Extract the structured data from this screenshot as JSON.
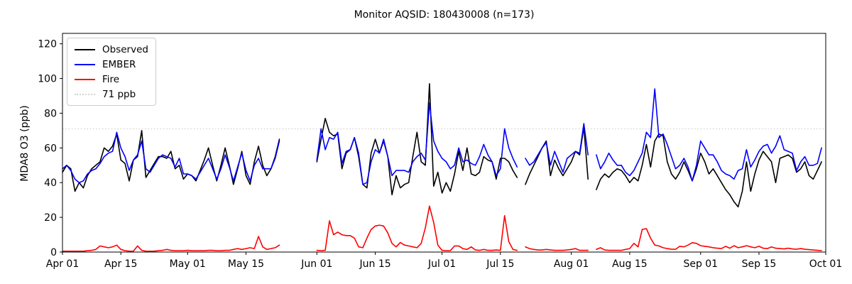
{
  "title": "Monitor AQSID: 180430008 (n=173)",
  "chart_data": {
    "type": "line",
    "title": "Monitor AQSID: 180430008 (n=173)",
    "xlabel": "",
    "ylabel": "MDA8 O3 (ppb)",
    "ylim": [
      0,
      126
    ],
    "yticks": [
      0,
      20,
      40,
      60,
      80,
      100,
      120
    ],
    "x_total_days": 183,
    "x_start_date": "Apr 01",
    "x_tick_days": [
      0,
      14,
      30,
      44,
      61,
      75,
      91,
      105,
      122,
      136,
      153,
      167,
      183
    ],
    "x_tick_labels": [
      "Apr 01",
      "Apr 15",
      "May 01",
      "May 15",
      "Jun 01",
      "Jun 15",
      "Jul 01",
      "Jul 15",
      "Aug 01",
      "Aug 15",
      "Sep 01",
      "Sep 15",
      "Oct 01"
    ],
    "grid": false,
    "legend_position": "upper left",
    "n_points": 173,
    "missing_day_indices": [
      53,
      54,
      55,
      56,
      57,
      58,
      59,
      60,
      110,
      127
    ],
    "threshold": {
      "label": "71 ppb",
      "value": 71,
      "color": "#d3d3d3",
      "style": "dotted"
    },
    "series": [
      {
        "name": "Observed",
        "color": "#000000",
        "values": [
          46,
          50,
          48,
          35,
          40,
          37,
          44,
          48,
          50,
          52,
          60,
          58,
          61,
          68,
          53,
          51,
          41,
          53,
          55,
          70,
          43,
          47,
          51,
          55,
          55,
          54,
          58,
          48,
          50,
          42,
          45,
          44,
          41,
          47,
          53,
          60,
          50,
          41,
          50,
          60,
          50,
          39,
          48,
          58,
          44,
          39,
          52,
          61,
          50,
          44,
          48,
          55,
          65,
          null,
          null,
          null,
          null,
          null,
          null,
          null,
          null,
          52,
          65,
          77,
          69,
          67,
          68,
          48,
          57,
          59,
          66,
          55,
          39,
          37,
          57,
          65,
          57,
          64,
          55,
          33,
          44,
          37,
          39,
          40,
          55,
          69,
          52,
          50,
          97,
          38,
          46,
          34,
          40,
          35,
          45,
          58,
          47,
          60,
          45,
          44,
          46,
          55,
          53,
          52,
          42,
          54,
          54,
          52,
          47,
          43,
          null,
          39,
          45,
          50,
          55,
          60,
          64,
          44,
          53,
          48,
          44,
          48,
          52,
          58,
          56,
          72,
          42,
          null,
          36,
          42,
          45,
          43,
          46,
          48,
          47,
          44,
          40,
          43,
          41,
          50,
          62,
          49,
          64,
          68,
          67,
          52,
          45,
          42,
          46,
          52,
          47,
          41,
          48,
          57,
          52,
          45,
          48,
          44,
          40,
          36,
          33,
          29,
          26,
          35,
          52,
          35,
          45,
          53,
          58,
          55,
          52,
          40,
          54,
          55,
          56,
          54,
          46,
          48,
          52,
          44,
          42,
          47,
          52
        ]
      },
      {
        "name": "EMBER",
        "color": "#0000ff",
        "values": [
          48,
          50,
          47,
          42,
          40,
          41,
          45,
          47,
          48,
          51,
          55,
          57,
          58,
          69,
          60,
          55,
          47,
          53,
          56,
          64,
          48,
          46,
          50,
          54,
          56,
          55,
          54,
          49,
          54,
          45,
          45,
          44,
          42,
          46,
          50,
          54,
          48,
          42,
          48,
          56,
          49,
          41,
          49,
          57,
          47,
          41,
          50,
          54,
          48,
          48,
          48,
          54,
          64,
          null,
          null,
          null,
          null,
          null,
          null,
          null,
          null,
          53,
          71,
          59,
          66,
          65,
          69,
          51,
          58,
          59,
          66,
          57,
          39,
          40,
          52,
          59,
          57,
          65,
          55,
          44,
          47,
          47,
          47,
          46,
          52,
          55,
          57,
          53,
          86,
          64,
          58,
          54,
          52,
          48,
          50,
          60,
          52,
          53,
          51,
          50,
          55,
          62,
          56,
          52,
          44,
          48,
          71,
          60,
          54,
          49,
          null,
          54,
          50,
          52,
          56,
          60,
          63,
          50,
          58,
          52,
          46,
          54,
          56,
          58,
          57,
          74,
          56,
          null,
          56,
          48,
          52,
          57,
          53,
          50,
          50,
          46,
          44,
          47,
          52,
          57,
          69,
          66,
          94,
          66,
          68,
          62,
          55,
          48,
          50,
          54,
          49,
          41,
          50,
          64,
          60,
          56,
          56,
          52,
          47,
          45,
          44,
          42,
          47,
          48,
          59,
          49,
          53,
          58,
          61,
          62,
          57,
          61,
          67,
          59,
          58,
          57,
          47,
          52,
          55,
          50,
          50,
          51,
          60
        ]
      },
      {
        "name": "Fire",
        "color": "#ff0000",
        "values": [
          0.5,
          0.5,
          0.5,
          0.5,
          0.5,
          0.5,
          0.8,
          1,
          1.5,
          3.5,
          3,
          2.5,
          3,
          4,
          1.5,
          0.8,
          0.5,
          0.5,
          3.5,
          1,
          0.5,
          0.5,
          0.5,
          0.8,
          1,
          1.5,
          1,
          0.8,
          0.8,
          0.8,
          1,
          0.8,
          0.8,
          0.8,
          0.8,
          1,
          1,
          0.8,
          0.8,
          1,
          1,
          1.5,
          2,
          1.5,
          2,
          2.5,
          2,
          9,
          3,
          1.5,
          2,
          2.5,
          4,
          null,
          null,
          null,
          null,
          null,
          null,
          null,
          null,
          1,
          0.8,
          1,
          18,
          10,
          11.5,
          10,
          9.5,
          9.5,
          8,
          3,
          2.5,
          8,
          13,
          15,
          15.5,
          15,
          11,
          5,
          3,
          5.5,
          4,
          3.5,
          3,
          2.5,
          5,
          14,
          26.5,
          17,
          4,
          1,
          0.8,
          0.8,
          3.5,
          3.5,
          2,
          1.5,
          3,
          1.2,
          1,
          1.5,
          1,
          1,
          1.2,
          1,
          21,
          6,
          1.5,
          1,
          null,
          3,
          2,
          1.5,
          1.2,
          1.2,
          1.5,
          1.2,
          1,
          1,
          1,
          1.2,
          1.5,
          2,
          1,
          1,
          1,
          null,
          1.5,
          2.5,
          1.2,
          1,
          1,
          1,
          1,
          1.5,
          2,
          5,
          3,
          13,
          13.5,
          8,
          4,
          3.5,
          2.5,
          2,
          1.6,
          1.6,
          3.3,
          3,
          4,
          5.4,
          5,
          3.7,
          3.3,
          3,
          2.5,
          2.2,
          2,
          3.3,
          2.2,
          3.7,
          2.5,
          3,
          3.7,
          3,
          2.5,
          3.3,
          2.2,
          2,
          3,
          2.2,
          2,
          1.8,
          2.2,
          1.8,
          1.6,
          2,
          1.6,
          1.4,
          1.2,
          1,
          0.8
        ]
      }
    ]
  }
}
